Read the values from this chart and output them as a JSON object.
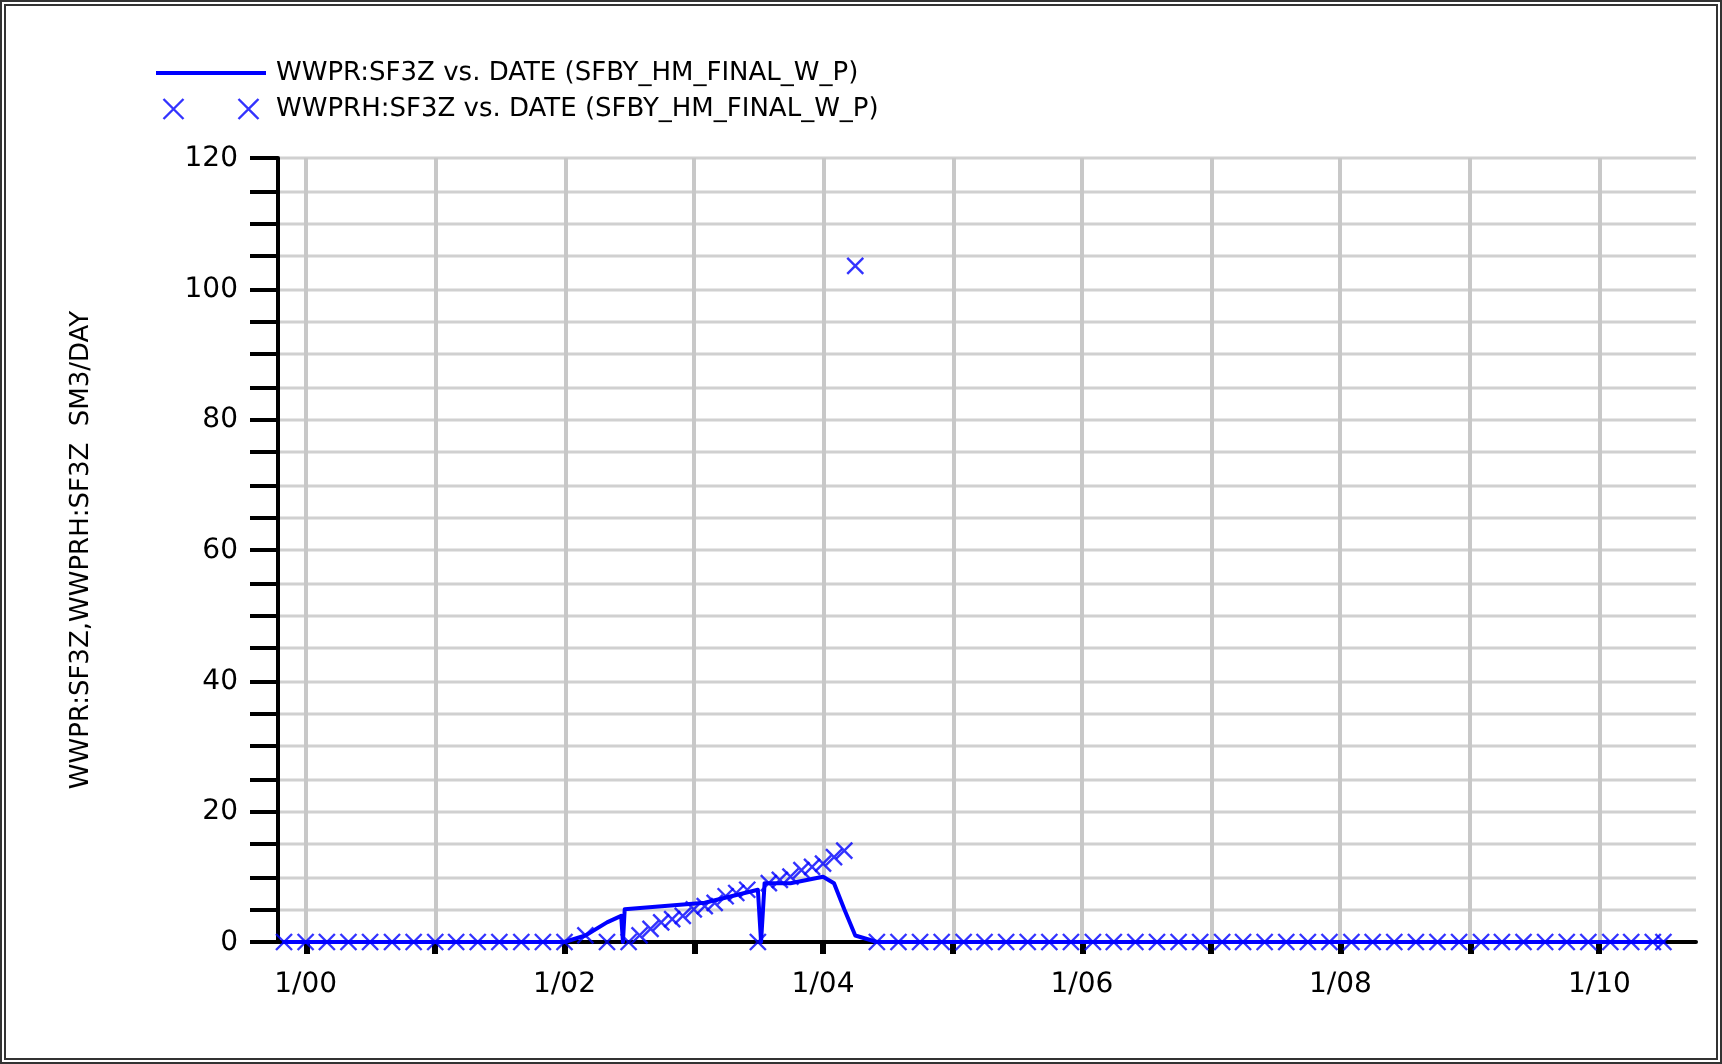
{
  "chart_data": {
    "type": "line",
    "ylabel": "WWPR:SF3Z,WWPRH:SF3Z  SM3/DAY",
    "legend": "top left",
    "grid": true,
    "xlim": [
      "1999-10-15",
      "2010-10-01"
    ],
    "xticks": [
      {
        "value": "2000-01",
        "label": "1/00"
      },
      {
        "value": "2001-01",
        "label": null
      },
      {
        "value": "2002-01",
        "label": "1/02"
      },
      {
        "value": "2003-01",
        "label": null
      },
      {
        "value": "2004-01",
        "label": "1/04"
      },
      {
        "value": "2005-01",
        "label": null
      },
      {
        "value": "2006-01",
        "label": "1/06"
      },
      {
        "value": "2007-01",
        "label": null
      },
      {
        "value": "2008-01",
        "label": "1/08"
      },
      {
        "value": "2009-01",
        "label": null
      },
      {
        "value": "2010-01",
        "label": "1/10"
      }
    ],
    "ylim": [
      0,
      120
    ],
    "yticks": [
      0,
      {
        "value": 5,
        "label": null
      },
      {
        "value": 10,
        "label": null
      },
      {
        "value": 15,
        "label": null
      },
      20,
      {
        "value": 25,
        "label": null
      },
      {
        "value": 30,
        "label": null
      },
      {
        "value": 35,
        "label": null
      },
      40,
      {
        "value": 45,
        "label": null
      },
      {
        "value": 50,
        "label": null
      },
      {
        "value": 55,
        "label": null
      },
      60,
      {
        "value": 65,
        "label": null
      },
      {
        "value": 70,
        "label": null
      },
      {
        "value": 75,
        "label": null
      },
      80,
      {
        "value": 85,
        "label": null
      },
      {
        "value": 90,
        "label": null
      },
      {
        "value": 95,
        "label": null
      },
      100,
      {
        "value": 105,
        "label": null
      },
      {
        "value": 110,
        "label": null
      },
      {
        "value": 115,
        "label": null
      },
      120
    ],
    "series": [
      {
        "name": "WWPR:SF3Z vs. DATE (SFBY_HM_FINAL_W_P)",
        "color": "#0000ff",
        "marker": "none",
        "line_style": "solid",
        "x": [
          "1999-11",
          "2000-06",
          "2001-01",
          "2001-06",
          "2002-01",
          "2002-03",
          "2002-05",
          "2002-06-10",
          "2002-06-15",
          "2002-06-20",
          "2003-02",
          "2003-07-01",
          "2003-07-10",
          "2003-07-20",
          "2003-10",
          "2004-01",
          "2004-02",
          "2004-03",
          "2004-04",
          "2004-06",
          "2005-06",
          "2007-01",
          "2008-06",
          "2010-07"
        ],
        "values": [
          0,
          0,
          0,
          0,
          0,
          1,
          3,
          4,
          0,
          5,
          6,
          8,
          0,
          9,
          9,
          10,
          9,
          5,
          1,
          0,
          0,
          0,
          0,
          0
        ]
      },
      {
        "name": "WWPRH:SF3Z vs. DATE (SFBY_HM_FINAL_W_P)",
        "type": "scatter",
        "color": "#0000ff",
        "marker": "cross",
        "x": [
          "1999-11",
          "2000-01",
          "2000-03",
          "2000-05",
          "2000-07",
          "2000-09",
          "2000-11",
          "2001-01",
          "2001-03",
          "2001-05",
          "2001-07",
          "2001-09",
          "2001-11",
          "2002-01",
          "2002-03",
          "2002-05",
          "2002-07",
          "2002-08",
          "2002-09",
          "2002-10",
          "2002-11",
          "2002-12",
          "2003-01",
          "2003-02",
          "2003-03",
          "2003-04",
          "2003-05",
          "2003-06",
          "2003-07",
          "2003-08",
          "2003-09",
          "2003-10",
          "2003-11",
          "2003-12",
          "2004-01",
          "2004-02",
          "2004-03",
          "2004-04",
          "2004-06",
          "2004-08",
          "2004-10",
          "2004-12",
          "2005-02",
          "2005-04",
          "2005-06",
          "2005-08",
          "2005-10",
          "2005-12",
          "2006-02",
          "2006-04",
          "2006-06",
          "2006-08",
          "2006-10",
          "2006-12",
          "2007-02",
          "2007-04",
          "2007-06",
          "2007-08",
          "2007-10",
          "2007-12",
          "2008-02",
          "2008-04",
          "2008-06",
          "2008-08",
          "2008-10",
          "2008-12",
          "2009-02",
          "2009-04",
          "2009-06",
          "2009-08",
          "2009-10",
          "2009-12",
          "2010-02",
          "2010-04",
          "2010-06",
          "2010-07"
        ],
        "values": [
          0,
          0,
          0,
          0,
          0,
          0,
          0,
          0,
          0,
          0,
          0,
          0,
          0,
          0,
          1,
          0,
          0,
          1,
          2,
          3,
          3.5,
          4,
          5,
          5.5,
          6,
          7,
          7.5,
          8,
          0,
          9,
          9.5,
          10,
          11,
          11.5,
          12,
          13,
          14,
          103.5,
          0,
          0,
          0,
          0,
          0,
          0,
          0,
          0,
          0,
          0,
          0,
          0,
          0,
          0,
          0,
          0,
          0,
          0,
          0,
          0,
          0,
          0,
          0,
          0,
          0,
          0,
          0,
          0,
          0,
          0,
          0,
          0,
          0,
          0,
          0,
          0,
          0,
          0
        ]
      }
    ]
  }
}
